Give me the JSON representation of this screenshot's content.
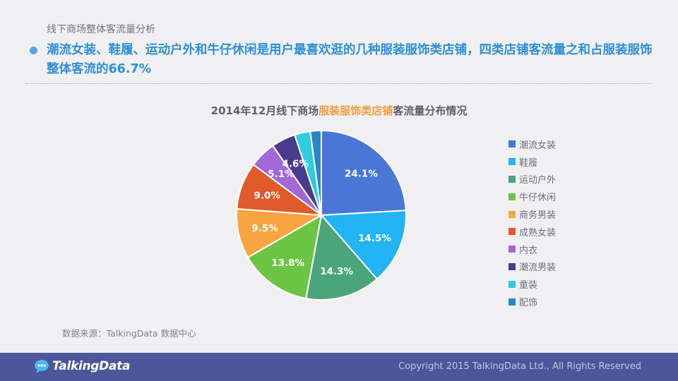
{
  "section": {
    "label": "线下商场整体客流量分析"
  },
  "headline": {
    "text": "潮流女装、鞋履、运动户外和牛仔休闲是用户最喜欢逛的几种服装服饰类店铺，四类店铺客流量之和占服装服饰整体客流的",
    "highlight": "66.7%"
  },
  "chart_title": {
    "prefix": "2014年12月线下商场",
    "accent": "服装服饰类店铺",
    "suffix": "客流量分布情况"
  },
  "chart_data": {
    "type": "pie",
    "title": "2014年12月线下商场服装服饰类店铺客流量分布情况",
    "categories": [
      "潮流女装",
      "鞋履",
      "运动户外",
      "牛仔休闲",
      "商务男装",
      "成熟女装",
      "内衣",
      "潮流男装",
      "童装",
      "配饰"
    ],
    "values": [
      24.1,
      14.5,
      14.3,
      13.8,
      9.5,
      9.0,
      5.1,
      4.6,
      3.0,
      2.1
    ],
    "labels": [
      "24.1%",
      "14.5%",
      "14.3%",
      "13.8%",
      "9.5%",
      "9.0%",
      "5.1%",
      "4.6%",
      "",
      ""
    ],
    "colors": [
      "#4a76d6",
      "#22b4f5",
      "#4aa57b",
      "#6cc444",
      "#f7a441",
      "#e05a2b",
      "#a268d7",
      "#4b3b8d",
      "#2ecde0",
      "#2b86c6"
    ],
    "legend_position": "right"
  },
  "source": {
    "text": "数据来源：TalkingData 数据中心"
  },
  "footer": {
    "logo": "TalkingData",
    "copyright": "Copyright 2015 TalkingData Ltd., All Rights Reserved"
  }
}
